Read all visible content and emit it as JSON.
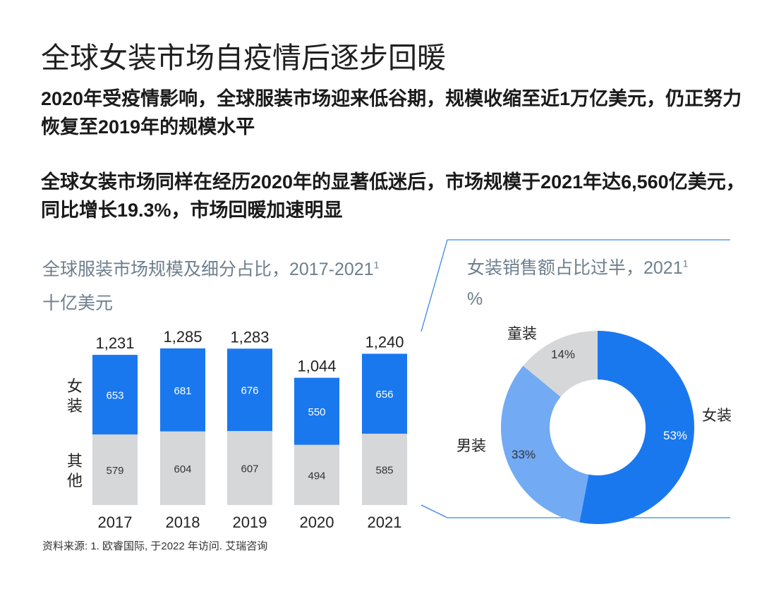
{
  "title": "全球女装市场自疫情后逐步回暖",
  "paragraphs": [
    "2020年受疫情影响，全球服装市场迎来低谷期，规模收缩至近1万亿美元，仍正努力恢复至2019年的规模水平",
    "全球女装市场同样在经历2020年的显著低迷后，市场规模于2021年达6,560亿美元，同比增长19.3%，市场回暖加速明显"
  ],
  "source": "资料来源: 1. 欧睿国际, 于2022 年访问. 艾瑞咨询",
  "colors": {
    "women": "#1a78ef",
    "other": "#d6d7d9",
    "men": "#72aaf4",
    "kids": "#d6d7d9",
    "connector": "#3a86e8"
  },
  "chart_data": [
    {
      "type": "bar",
      "stacked": true,
      "title": "全球服装市场规模及细分占比，2017-2021",
      "title_sup": "1",
      "ylabel": "十亿美元",
      "categories": [
        "2017",
        "2018",
        "2019",
        "2020",
        "2021"
      ],
      "series": [
        {
          "name": "其他",
          "values": [
            579,
            604,
            607,
            494,
            585
          ]
        },
        {
          "name": "女装",
          "values": [
            653,
            681,
            676,
            550,
            656
          ]
        }
      ],
      "totals": [
        "1,231",
        "1,285",
        "1,283",
        "1,044",
        "1,240"
      ],
      "series_labels": [
        "女装",
        "其他"
      ]
    },
    {
      "type": "pie",
      "donut": true,
      "title": "女装销售额占比过半，2021",
      "title_sup": "1",
      "unit": "%",
      "slices": [
        {
          "name": "女装",
          "value": 53,
          "label": "53%"
        },
        {
          "name": "男装",
          "value": 33,
          "label": "33%"
        },
        {
          "name": "童装",
          "value": 14,
          "label": "14%"
        }
      ]
    }
  ]
}
